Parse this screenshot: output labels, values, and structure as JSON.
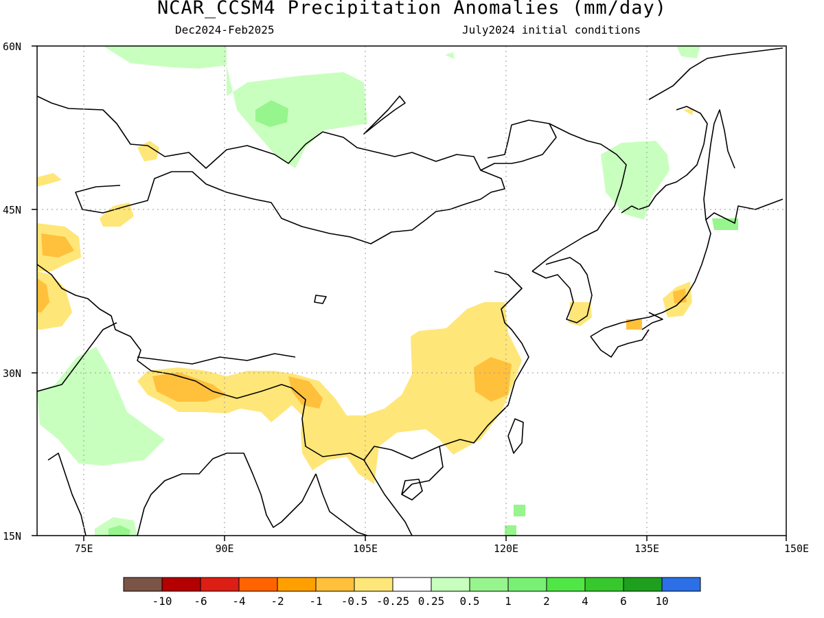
{
  "title": "NCAR_CCSM4 Precipitation Anomalies (mm/day)",
  "subtitle_left": "Dec2024-Feb2025",
  "subtitle_right": "July2024 initial conditions",
  "axes": {
    "y_labels": [
      "60N",
      "45N",
      "30N",
      "15N"
    ],
    "x_labels": [
      "75E",
      "90E",
      "105E",
      "120E",
      "135E",
      "150E"
    ],
    "lon_range": [
      70,
      150
    ],
    "lat_range": [
      15,
      60
    ],
    "grid": "dotted"
  },
  "colorbar": {
    "colors": [
      "#7a5446",
      "#b40000",
      "#dc1e14",
      "#ff6400",
      "#ffa000",
      "#ffc03c",
      "#ffe678",
      "#ffffff",
      "#c8ffbe",
      "#96f58c",
      "#78f073",
      "#50e646",
      "#37c82d",
      "#1ea01e",
      "#2c6fe6"
    ],
    "labels": [
      "-10",
      "-6",
      "-4",
      "-2",
      "-1",
      "-0.5",
      "-0.25",
      "0.25",
      "0.5",
      "1",
      "2",
      "4",
      "6",
      "10"
    ]
  },
  "anomaly_colors": {
    "dry_light": "#ffe678",
    "dry_medium": "#ffc03c",
    "wet_light": "#c8ffbe",
    "wet_medium": "#96f58c"
  }
}
